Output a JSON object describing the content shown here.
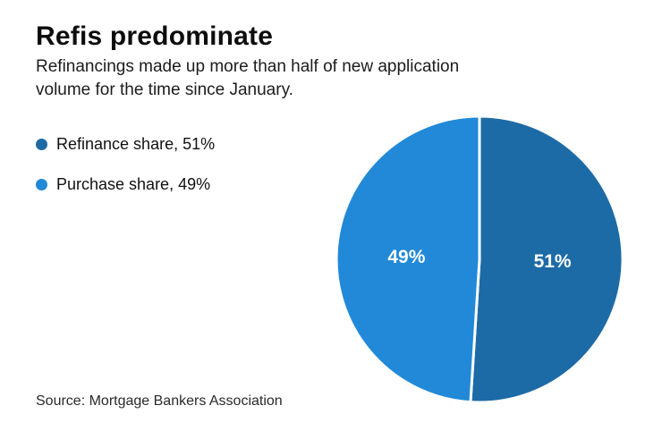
{
  "page": {
    "background": "#ffffff"
  },
  "header": {
    "title": "Refis predominate",
    "subtitle_line1": "Refinancings made up more than half of new application",
    "subtitle_line2": "volume for the time since January."
  },
  "legend": {
    "items": [
      {
        "label": "Refinance share, 51%",
        "color": "#1d6ba6"
      },
      {
        "label": "Purchase share, 49%",
        "color": "#2189d8"
      }
    ]
  },
  "chart_data": {
    "type": "pie",
    "title": "Refis predominate",
    "slices": [
      {
        "name": "Refinance share",
        "value": 51,
        "display_label": "51%",
        "color": "#1d6ba6"
      },
      {
        "name": "Purchase share",
        "value": 49,
        "display_label": "49%",
        "color": "#2189d8"
      }
    ],
    "start_angle_deg": -90,
    "direction": "clockwise",
    "center": [
      536,
      290
    ],
    "radius": 160,
    "label_radius_ratio": 0.51,
    "label_color": "#ffffff",
    "label_font_size": 21,
    "divider_color": "#ffffff",
    "divider_width": 3,
    "legend_position": "left"
  },
  "footer": {
    "source": "Source: Mortgage Bankers Association"
  }
}
